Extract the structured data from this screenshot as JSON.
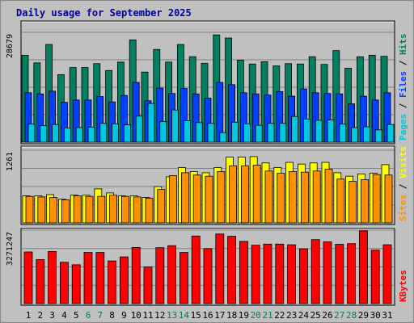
{
  "chart_data": {
    "type": "bar",
    "title": "Daily usage for September 2025",
    "days": [
      "1",
      "2",
      "3",
      "4",
      "5",
      "6",
      "7",
      "8",
      "9",
      "10",
      "11",
      "12",
      "13",
      "14",
      "15",
      "16",
      "17",
      "18",
      "19",
      "20",
      "21",
      "22",
      "23",
      "24",
      "25",
      "26",
      "27",
      "28",
      "29",
      "30",
      "31"
    ],
    "weekend_days": [
      "6",
      "7",
      "13",
      "14",
      "20",
      "21",
      "27",
      "28"
    ],
    "panels": [
      {
        "id": "hits",
        "max_label": "28679",
        "ymax": 28679,
        "legend": [
          {
            "name": "Pages",
            "color": "#00c8e0"
          },
          {
            "name": "Files",
            "color": "#0040ff"
          },
          {
            "name": "Hits",
            "color": "#008060"
          }
        ],
        "series": [
          {
            "name": "Hits",
            "color": "#008060",
            "values": [
              22700,
              20700,
              25500,
              17600,
              19500,
              19500,
              20500,
              18700,
              20900,
              26700,
              18300,
              24200,
              20900,
              25500,
              22300,
              20600,
              28000,
              27200,
              21400,
              20400,
              21000,
              19900,
              20500,
              20400,
              22300,
              20300,
              23900,
              19300,
              22300,
              22700,
              22400
            ]
          },
          {
            "name": "Files",
            "color": "#0040ff",
            "values": [
              12900,
              12600,
              13300,
              10400,
              11000,
              11000,
              11900,
              10500,
              12200,
              15600,
              10800,
              14100,
              12700,
              14000,
              12600,
              11500,
              15600,
              15000,
              12900,
              12600,
              12300,
              13200,
              12000,
              13900,
              12900,
              12700,
              12600,
              10000,
              12000,
              11000,
              12900
            ]
          },
          {
            "name": "Pages",
            "color": "#00c8e0",
            "values": [
              4700,
              4300,
              4600,
              3700,
              3800,
              3900,
              4900,
              4800,
              4500,
              6800,
              10100,
              5400,
              8400,
              5600,
              5100,
              4900,
              2500,
              5200,
              4800,
              4400,
              4900,
              4900,
              6700,
              6000,
              5700,
              5800,
              4700,
              3800,
              4000,
              3200,
              4600
            ]
          }
        ]
      },
      {
        "id": "visits",
        "max_label": "1261",
        "ymax": 1261,
        "legend": [
          {
            "name": "Sites",
            "color": "#ff9000"
          },
          {
            "name": "Visits",
            "color": "#ffff00"
          }
        ],
        "series": [
          {
            "name": "Visits",
            "color": "#ffff00",
            "values": [
              470,
              470,
              490,
              410,
              480,
              480,
              590,
              520,
              470,
              470,
              440,
              630,
              800,
              960,
              890,
              870,
              960,
              1140,
              1140,
              1150,
              1040,
              960,
              1050,
              1020,
              1040,
              1050,
              870,
              810,
              850,
              860,
              1010
            ]
          },
          {
            "name": "Sites",
            "color": "#ff9000",
            "values": [
              460,
              450,
              440,
              400,
              470,
              460,
              460,
              480,
              460,
              450,
              430,
              580,
              820,
              870,
              830,
              810,
              890,
              990,
              990,
              1000,
              900,
              860,
              890,
              880,
              900,
              930,
              760,
              720,
              750,
              840,
              830
            ]
          }
        ]
      },
      {
        "id": "kbytes",
        "max_label": "3271247",
        "ymax": 3271247,
        "legend": [
          {
            "name": "KBytes",
            "color": "#ff0000"
          }
        ],
        "series": [
          {
            "name": "KBytes",
            "color": "#ff0000",
            "values": [
              2300000,
              1960000,
              2320000,
              1840000,
              1730000,
              2280000,
              2280000,
              1900000,
              2080000,
              2500000,
              1630000,
              2490000,
              2580000,
              2280000,
              3010000,
              2450000,
              3100000,
              3000000,
              2770000,
              2600000,
              2650000,
              2650000,
              2620000,
              2440000,
              2850000,
              2750000,
              2640000,
              2670000,
              3240000,
              2380000,
              2620000
            ]
          }
        ]
      }
    ]
  }
}
